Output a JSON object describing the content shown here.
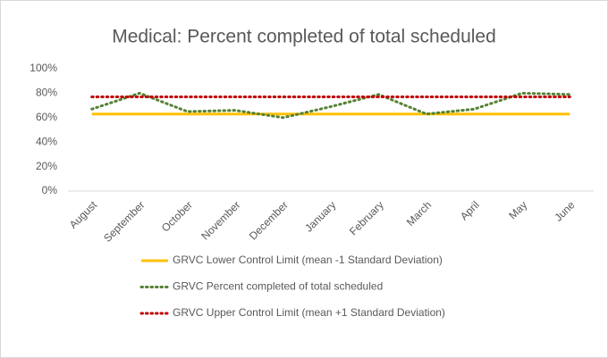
{
  "chart_data": {
    "type": "line",
    "title": "Medical: Percent completed of total scheduled",
    "categories": [
      "August",
      "September",
      "October",
      "November",
      "December",
      "January",
      "February",
      "March",
      "April",
      "May",
      "June"
    ],
    "series": [
      {
        "name": "GRVC Lower Control Limit (mean -1 Standard Deviation)",
        "color": "#ffc000",
        "style": "solid",
        "values": [
          63,
          63,
          63,
          63,
          63,
          63,
          63,
          63,
          63,
          63,
          63
        ]
      },
      {
        "name": "GRVC Percent completed of total scheduled",
        "color": "#548235",
        "style": "dotted",
        "values": [
          67,
          80,
          65,
          66,
          60,
          69,
          79,
          63,
          67,
          80,
          79
        ]
      },
      {
        "name": "GRVC Upper Control Limit (mean +1 Standard Deviation)",
        "color": "#c00000",
        "style": "dotted",
        "values": [
          77,
          77,
          77,
          77,
          77,
          77,
          77,
          77,
          77,
          77,
          77
        ]
      }
    ],
    "ylim": [
      0,
      100
    ],
    "yticks": [
      {
        "value": 0,
        "label": "0%"
      },
      {
        "value": 20,
        "label": "20%"
      },
      {
        "value": 40,
        "label": "40%"
      },
      {
        "value": 60,
        "label": "60%"
      },
      {
        "value": 80,
        "label": "80%"
      },
      {
        "value": 100,
        "label": "100%"
      }
    ],
    "grid": false,
    "legend": "bottom"
  }
}
